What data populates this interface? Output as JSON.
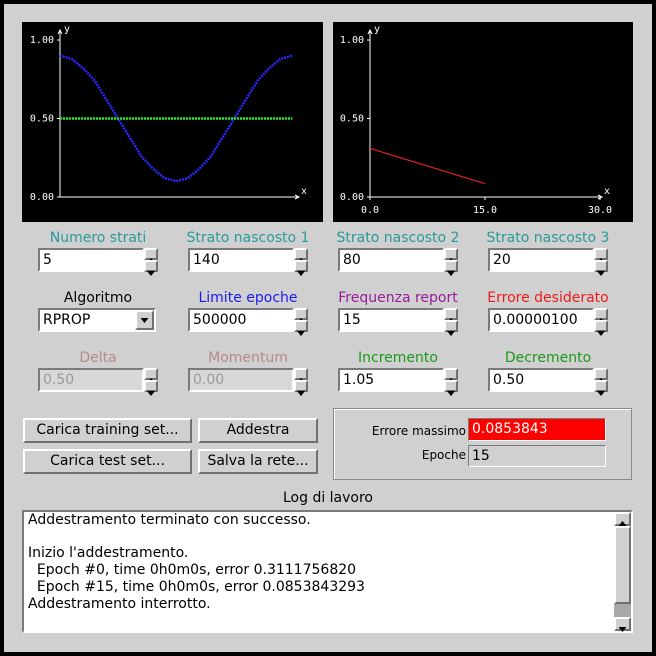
{
  "chart_data": [
    {
      "type": "line",
      "x_label": "x",
      "y_label": "y",
      "x": [
        0,
        0.05,
        0.1,
        0.15,
        0.2,
        0.25,
        0.3,
        0.35,
        0.4,
        0.45,
        0.5,
        0.55,
        0.6,
        0.65,
        0.7,
        0.75,
        0.8,
        0.85,
        0.9,
        0.95,
        1
      ],
      "series": [
        {
          "color": "#2a2aff",
          "values": [
            0.9,
            0.88,
            0.82,
            0.74,
            0.62,
            0.5,
            0.38,
            0.26,
            0.18,
            0.12,
            0.1,
            0.12,
            0.18,
            0.26,
            0.38,
            0.5,
            0.62,
            0.74,
            0.82,
            0.88,
            0.9
          ]
        },
        {
          "color": "#22ee22",
          "values": [
            0.5,
            0.5,
            0.5,
            0.5,
            0.5,
            0.5,
            0.5,
            0.5,
            0.5,
            0.5,
            0.5,
            0.5,
            0.5,
            0.5,
            0.5,
            0.5,
            0.5,
            0.5,
            0.5,
            0.5,
            0.5
          ]
        }
      ],
      "xlim": [
        0,
        1.02
      ],
      "ylim": [
        0,
        1
      ],
      "yticks": [
        {
          "value": 0,
          "label": "0.00"
        },
        {
          "value": 0.5,
          "label": "0.50"
        },
        {
          "value": 1,
          "label": "1.00"
        }
      ]
    },
    {
      "type": "line",
      "x_label": "x",
      "y_label": "y",
      "x": [
        0,
        15
      ],
      "series": [
        {
          "color": "#e02020",
          "values": [
            0.31,
            0.085
          ]
        }
      ],
      "xlim": [
        0,
        30
      ],
      "ylim": [
        0,
        1
      ],
      "xticks": [
        {
          "value": 0,
          "label": "0.0"
        },
        {
          "value": 15,
          "label": "15.0"
        },
        {
          "value": 30,
          "label": "30.0"
        }
      ],
      "yticks": [
        {
          "value": 0,
          "label": "0.00"
        },
        {
          "value": 0.5,
          "label": "0.50"
        },
        {
          "value": 1,
          "label": "1.00"
        }
      ]
    }
  ],
  "fields": [
    {
      "label": "Numero strati",
      "value": "5",
      "color": "#2a9a9a"
    },
    {
      "label": "Strato nascosto 1",
      "value": "140",
      "color": "#2a9a9a"
    },
    {
      "label": "Strato nascosto 2",
      "value": "80",
      "color": "#2a9a9a"
    },
    {
      "label": "Strato nascosto 3",
      "value": "20",
      "color": "#2a9a9a"
    },
    {
      "label": "Algoritmo",
      "value": "RPROP",
      "color": "#000000",
      "kind": "combo"
    },
    {
      "label": "Limite epoche",
      "value": "500000",
      "color": "#1a1aee"
    },
    {
      "label": "Frequenza report",
      "value": "15",
      "color": "#9a1a9a"
    },
    {
      "label": "Errore desiderato",
      "value": "0.00000100",
      "color": "#ee1a1a"
    },
    {
      "label": "Delta",
      "value": "0.50",
      "color": "#b88a8a",
      "disabled": true
    },
    {
      "label": "Momentum",
      "value": "0.00",
      "color": "#b88a8a",
      "disabled": true
    },
    {
      "label": "Incremento",
      "value": "1.05",
      "color": "#1a9a1a"
    },
    {
      "label": "Decremento",
      "value": "0.50",
      "color": "#1a9a1a"
    }
  ],
  "buttons": [
    "Carica training set...",
    "Addestra",
    "Carica test set...",
    "Salva la rete..."
  ],
  "status": {
    "max_error_label": "Errore massimo",
    "max_error": "0.0853843",
    "epochs_label": "Epoche",
    "epochs": "15"
  },
  "log": {
    "title": "Log di lavoro",
    "paragraphs": [
      [
        "Addestramento terminato con successo."
      ],
      [
        "Inizio l'addestramento.",
        "  Epoch #0, time 0h0m0s, error 0.3111756820",
        "  Epoch #15, time 0h0m0s, error 0.0853843293",
        "Addestramento interrotto."
      ]
    ]
  }
}
